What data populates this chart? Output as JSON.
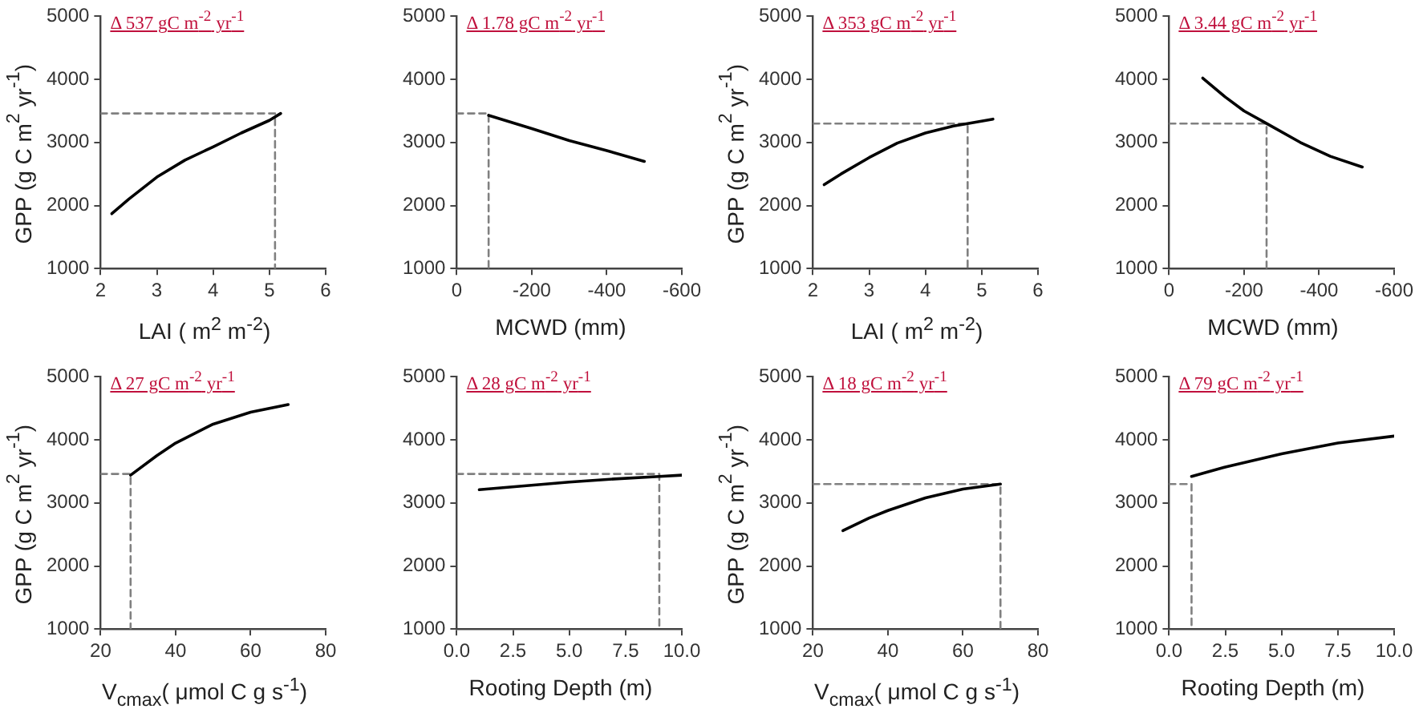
{
  "chart_data": [
    {
      "type": "line",
      "ylabel": "GPP (g C m$^{2}$ yr$^{-1}$)",
      "xlabel": "LAI ( m$^{2}$ m$^{-2}$)",
      "annotations": [
        "Δ 537 gC m$^{-2}$ yr$^{-1}$"
      ],
      "xlim": [
        2,
        6
      ],
      "xticks": [
        2,
        3,
        4,
        5,
        6
      ],
      "ylim": [
        1000,
        5000
      ],
      "yticks": [
        1000,
        2000,
        3000,
        4000,
        5000
      ],
      "grid": false,
      "marker": "none",
      "series": [
        {
          "color": "#000000",
          "line_style": "solid",
          "x": [
            2.2,
            2.5,
            3,
            3.5,
            4,
            4.5,
            5,
            5.2
          ],
          "values": [
            1870,
            2100,
            2450,
            2720,
            2930,
            3150,
            3350,
            3460
          ]
        },
        {
          "color": "#808080",
          "line_style": "dashed",
          "x": [
            2,
            5.1,
            5.1
          ],
          "values": [
            3460,
            3460,
            1000
          ]
        }
      ]
    },
    {
      "type": "line",
      "xlabel": "MCWD (mm)",
      "annotations": [
        "Δ 1.78 gC m$^{-2}$ yr$^{-1}$"
      ],
      "xlim": [
        0,
        -600
      ],
      "xticks": [
        0,
        -200,
        -400,
        -600
      ],
      "ylim": [
        1000,
        5000
      ],
      "yticks": [
        1000,
        2000,
        3000,
        4000,
        5000
      ],
      "grid": false,
      "marker": "none",
      "series": [
        {
          "color": "#000000",
          "line_style": "solid",
          "x": [
            -85,
            -200,
            -300,
            -400,
            -500
          ],
          "values": [
            3430,
            3220,
            3030,
            2870,
            2700
          ]
        },
        {
          "color": "#808080",
          "line_style": "dashed",
          "x": [
            0,
            -85,
            -85
          ],
          "values": [
            3460,
            3460,
            1000
          ]
        }
      ]
    },
    {
      "type": "line",
      "ylabel": "GPP (g C m$^{2}$ yr$^{-1}$)",
      "xlabel": "LAI ( m$^{2}$ m$^{-2}$)",
      "annotations": [
        "Δ 353 gC m$^{-2}$ yr$^{-1}$"
      ],
      "xlim": [
        2,
        6
      ],
      "xticks": [
        2,
        3,
        4,
        5,
        6
      ],
      "ylim": [
        1000,
        5000
      ],
      "yticks": [
        1000,
        2000,
        3000,
        4000,
        5000
      ],
      "grid": false,
      "marker": "none",
      "series": [
        {
          "color": "#000000",
          "line_style": "solid",
          "x": [
            2.2,
            2.5,
            3,
            3.5,
            4,
            4.5,
            4.75,
            5.2
          ],
          "values": [
            2330,
            2500,
            2760,
            2990,
            3150,
            3260,
            3300,
            3370
          ]
        },
        {
          "color": "#808080",
          "line_style": "dashed",
          "x": [
            2,
            4.75,
            4.75
          ],
          "values": [
            3300,
            3300,
            1000
          ]
        }
      ]
    },
    {
      "type": "line",
      "xlabel": "MCWD (mm)",
      "annotations": [
        "Δ 3.44 gC m$^{-2}$ yr$^{-1}$"
      ],
      "xlim": [
        0,
        -600
      ],
      "xticks": [
        0,
        -200,
        -400,
        -600
      ],
      "ylim": [
        1000,
        5000
      ],
      "yticks": [
        1000,
        2000,
        3000,
        4000,
        5000
      ],
      "grid": false,
      "marker": "none",
      "series": [
        {
          "color": "#000000",
          "line_style": "solid",
          "x": [
            -90,
            -150,
            -200,
            -260,
            -350,
            -430,
            -515
          ],
          "values": [
            4020,
            3720,
            3500,
            3300,
            3000,
            2780,
            2610
          ]
        },
        {
          "color": "#808080",
          "line_style": "dashed",
          "x": [
            0,
            -260,
            -260
          ],
          "values": [
            3300,
            3300,
            1000
          ]
        }
      ]
    },
    {
      "type": "line",
      "ylabel": "GPP (g C m$^{2}$ yr$^{-1}$)",
      "xlabel": "V$_{cmax}$( μmol C g s$^{-1}$)",
      "annotations": [
        "Δ 27 gC m$^{-2}$ yr$^{-1}$"
      ],
      "xlim": [
        20,
        80
      ],
      "xticks": [
        20,
        40,
        60,
        80
      ],
      "ylim": [
        1000,
        5000
      ],
      "yticks": [
        1000,
        2000,
        3000,
        4000,
        5000
      ],
      "grid": false,
      "marker": "none",
      "series": [
        {
          "color": "#000000",
          "line_style": "solid",
          "x": [
            28,
            35,
            40,
            50,
            60,
            70
          ],
          "values": [
            3440,
            3750,
            3950,
            4250,
            4440,
            4560
          ]
        },
        {
          "color": "#808080",
          "line_style": "dashed",
          "x": [
            20,
            28,
            28
          ],
          "values": [
            3460,
            3460,
            1000
          ]
        }
      ]
    },
    {
      "type": "line",
      "xlabel": "Rooting Depth (m)",
      "annotations": [
        "Δ 28 gC m$^{-2}$ yr$^{-1}$"
      ],
      "xlim": [
        0,
        10
      ],
      "xticks": [
        {
          "value": 0,
          "label": "0.0"
        },
        2.5,
        {
          "value": 5,
          "label": "5.0"
        },
        7.5,
        {
          "value": 10,
          "label": "10.0"
        }
      ],
      "ylim": [
        1000,
        5000
      ],
      "yticks": [
        1000,
        2000,
        3000,
        4000,
        5000
      ],
      "grid": false,
      "marker": "none",
      "series": [
        {
          "color": "#000000",
          "line_style": "solid",
          "x": [
            1,
            3,
            5,
            7,
            9,
            10
          ],
          "values": [
            3210,
            3270,
            3330,
            3380,
            3420,
            3440
          ]
        },
        {
          "color": "#808080",
          "line_style": "dashed",
          "x": [
            0,
            9,
            9
          ],
          "values": [
            3460,
            3460,
            1000
          ]
        }
      ]
    },
    {
      "type": "line",
      "ylabel": "GPP (g C m$^{2}$ yr$^{-1}$)",
      "xlabel": "V$_{cmax}$( μmol C g s$^{-1}$)",
      "annotations": [
        "Δ 18 gC m$^{-2}$ yr$^{-1}$"
      ],
      "xlim": [
        20,
        80
      ],
      "xticks": [
        20,
        40,
        60,
        80
      ],
      "ylim": [
        1000,
        5000
      ],
      "yticks": [
        1000,
        2000,
        3000,
        4000,
        5000
      ],
      "grid": false,
      "marker": "none",
      "series": [
        {
          "color": "#000000",
          "line_style": "solid",
          "x": [
            28,
            35,
            40,
            50,
            60,
            70
          ],
          "values": [
            2560,
            2760,
            2880,
            3080,
            3220,
            3300
          ]
        },
        {
          "color": "#808080",
          "line_style": "dashed",
          "x": [
            20,
            70,
            70
          ],
          "values": [
            3300,
            3300,
            1000
          ]
        }
      ]
    },
    {
      "type": "line",
      "xlabel": "Rooting Depth (m)",
      "annotations": [
        "Δ 79 gC m$^{-2}$ yr$^{-1}$"
      ],
      "xlim": [
        0,
        10
      ],
      "xticks": [
        {
          "value": 0,
          "label": "0.0"
        },
        2.5,
        {
          "value": 5,
          "label": "5.0"
        },
        7.5,
        {
          "value": 10,
          "label": "10.0"
        }
      ],
      "ylim": [
        1000,
        5000
      ],
      "yticks": [
        1000,
        2000,
        3000,
        4000,
        5000
      ],
      "grid": false,
      "marker": "none",
      "series": [
        {
          "color": "#000000",
          "line_style": "solid",
          "x": [
            1,
            2.5,
            5,
            7.5,
            10
          ],
          "values": [
            3420,
            3570,
            3780,
            3950,
            4060
          ]
        },
        {
          "color": "#808080",
          "line_style": "dashed",
          "x": [
            0,
            1,
            1
          ],
          "values": [
            3300,
            3300,
            1000
          ]
        }
      ]
    }
  ]
}
